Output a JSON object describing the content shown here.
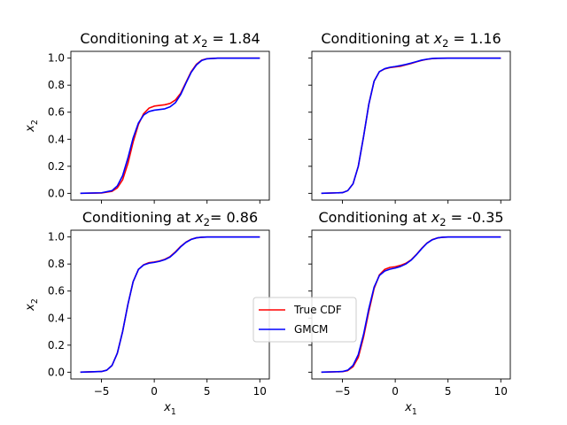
{
  "chart_data": [
    {
      "type": "line",
      "title": {
        "prefix": "Conditioning at ",
        "var": "x",
        "sub": "2",
        "suffix": " = 1.84"
      },
      "xlabel": {
        "var": "",
        "sub": ""
      },
      "ylabel": {
        "var": "x",
        "sub": "2"
      },
      "xlim": [
        -7.9,
        10.9
      ],
      "ylim": [
        -0.05,
        1.05
      ],
      "xticks": [
        -5,
        0,
        5,
        10
      ],
      "yticks": [
        0.0,
        0.2,
        0.4,
        0.6,
        0.8,
        1.0
      ],
      "xtick_labels": [
        "",
        "",
        "",
        ""
      ],
      "ytick_labels": [
        "0.0",
        "0.2",
        "0.4",
        "0.6",
        "0.8",
        "1.0"
      ],
      "series": [
        {
          "name": "True CDF",
          "color": "#ff0000",
          "x": [
            -7,
            -5,
            -4,
            -3.5,
            -3,
            -2.5,
            -2,
            -1.5,
            -1,
            -0.5,
            0,
            0.5,
            1,
            1.5,
            2,
            2.5,
            3,
            3.5,
            4,
            4.5,
            5,
            6,
            7,
            8,
            10
          ],
          "y": [
            0.0,
            0.003,
            0.015,
            0.04,
            0.1,
            0.22,
            0.38,
            0.51,
            0.59,
            0.63,
            0.645,
            0.65,
            0.655,
            0.665,
            0.69,
            0.74,
            0.82,
            0.9,
            0.955,
            0.985,
            0.996,
            1.0,
            1.0,
            1.0,
            1.0
          ]
        },
        {
          "name": "GMCM",
          "color": "#0000ff",
          "x": [
            -7,
            -5,
            -4,
            -3.5,
            -3,
            -2.5,
            -2,
            -1.5,
            -1,
            -0.5,
            0,
            0.5,
            1,
            1.5,
            2,
            2.5,
            3,
            3.5,
            4,
            4.5,
            5,
            6,
            7,
            8,
            10
          ],
          "y": [
            0.0,
            0.004,
            0.02,
            0.055,
            0.13,
            0.26,
            0.41,
            0.52,
            0.58,
            0.605,
            0.615,
            0.62,
            0.625,
            0.64,
            0.67,
            0.73,
            0.815,
            0.895,
            0.95,
            0.983,
            0.995,
            1.0,
            1.0,
            1.0,
            1.0
          ]
        }
      ]
    },
    {
      "type": "line",
      "title": {
        "prefix": "Conditioning at ",
        "var": "x",
        "sub": "2",
        "suffix": " =  1.16"
      },
      "xlabel": {
        "var": "",
        "sub": ""
      },
      "ylabel": {
        "var": "",
        "sub": ""
      },
      "xlim": [
        -7.9,
        10.9
      ],
      "ylim": [
        -0.05,
        1.05
      ],
      "xticks": [
        -5,
        0,
        5,
        10
      ],
      "yticks": [
        0.0,
        0.2,
        0.4,
        0.6,
        0.8,
        1.0
      ],
      "xtick_labels": [
        "",
        "",
        "",
        ""
      ],
      "ytick_labels": [
        "",
        "",
        "",
        "",
        "",
        ""
      ],
      "series": [
        {
          "name": "True CDF",
          "color": "#ff0000",
          "x": [
            -7,
            -5,
            -4.5,
            -4,
            -3.5,
            -3,
            -2.5,
            -2,
            -1.5,
            -1,
            -0.5,
            0,
            0.5,
            1,
            1.5,
            2,
            2.5,
            3,
            3.5,
            4,
            5,
            6,
            8,
            10
          ],
          "y": [
            0.0,
            0.005,
            0.02,
            0.07,
            0.2,
            0.42,
            0.66,
            0.83,
            0.9,
            0.92,
            0.93,
            0.935,
            0.94,
            0.95,
            0.96,
            0.972,
            0.983,
            0.991,
            0.996,
            0.999,
            1.0,
            1.0,
            1.0,
            1.0
          ]
        },
        {
          "name": "GMCM",
          "color": "#0000ff",
          "x": [
            -7,
            -5,
            -4.5,
            -4,
            -3.5,
            -3,
            -2.5,
            -2,
            -1.5,
            -1,
            -0.5,
            0,
            0.5,
            1,
            1.5,
            2,
            2.5,
            3,
            3.5,
            4,
            5,
            6,
            8,
            10
          ],
          "y": [
            0.0,
            0.005,
            0.02,
            0.07,
            0.2,
            0.42,
            0.66,
            0.83,
            0.9,
            0.922,
            0.932,
            0.938,
            0.945,
            0.953,
            0.963,
            0.974,
            0.985,
            0.992,
            0.997,
            0.999,
            1.0,
            1.0,
            1.0,
            1.0
          ]
        }
      ]
    },
    {
      "type": "line",
      "title": {
        "prefix": "Conditioning at ",
        "var": "x",
        "sub": "2",
        "suffix": "= 0.86"
      },
      "xlabel": {
        "var": "x",
        "sub": "1"
      },
      "ylabel": {
        "var": "x",
        "sub": "2"
      },
      "xlim": [
        -7.9,
        10.9
      ],
      "ylim": [
        -0.05,
        1.05
      ],
      "xticks": [
        -5,
        0,
        5,
        10
      ],
      "yticks": [
        0.0,
        0.2,
        0.4,
        0.6,
        0.8,
        1.0
      ],
      "xtick_labels": [
        "−5",
        "0",
        "5",
        "10"
      ],
      "ytick_labels": [
        "0.0",
        "0.2",
        "0.4",
        "0.6",
        "0.8",
        "1.0"
      ],
      "series": [
        {
          "name": "True CDF",
          "color": "#ff0000",
          "x": [
            -7,
            -5,
            -4.5,
            -4,
            -3.5,
            -3,
            -2.5,
            -2,
            -1.5,
            -1,
            -0.5,
            0,
            0.5,
            1,
            1.5,
            2,
            2.5,
            3,
            3.5,
            4,
            4.5,
            5,
            6,
            8,
            10
          ],
          "y": [
            0.0,
            0.005,
            0.015,
            0.05,
            0.14,
            0.3,
            0.5,
            0.67,
            0.76,
            0.795,
            0.81,
            0.815,
            0.822,
            0.835,
            0.855,
            0.89,
            0.93,
            0.962,
            0.983,
            0.994,
            0.998,
            1.0,
            1.0,
            1.0,
            1.0
          ]
        },
        {
          "name": "GMCM",
          "color": "#0000ff",
          "x": [
            -7,
            -5,
            -4.5,
            -4,
            -3.5,
            -3,
            -2.5,
            -2,
            -1.5,
            -1,
            -0.5,
            0,
            0.5,
            1,
            1.5,
            2,
            2.5,
            3,
            3.5,
            4,
            4.5,
            5,
            6,
            8,
            10
          ],
          "y": [
            0.0,
            0.005,
            0.015,
            0.05,
            0.14,
            0.3,
            0.5,
            0.67,
            0.76,
            0.793,
            0.806,
            0.812,
            0.82,
            0.832,
            0.852,
            0.886,
            0.927,
            0.96,
            0.982,
            0.994,
            0.998,
            1.0,
            1.0,
            1.0,
            1.0
          ]
        }
      ]
    },
    {
      "type": "line",
      "title": {
        "prefix": "Conditioning at ",
        "var": "x",
        "sub": "2",
        "suffix": " = -0.35"
      },
      "xlabel": {
        "var": "x",
        "sub": "1"
      },
      "ylabel": {
        "var": "",
        "sub": ""
      },
      "xlim": [
        -7.9,
        10.9
      ],
      "ylim": [
        -0.05,
        1.05
      ],
      "xticks": [
        -5,
        0,
        5,
        10
      ],
      "yticks": [
        0.0,
        0.2,
        0.4,
        0.6,
        0.8,
        1.0
      ],
      "xtick_labels": [
        "−5",
        "0",
        "5",
        "10"
      ],
      "ytick_labels": [
        "",
        "",
        "",
        "",
        "",
        ""
      ],
      "series": [
        {
          "name": "True CDF",
          "color": "#ff0000",
          "x": [
            -7,
            -5,
            -4.5,
            -4,
            -3.5,
            -3,
            -2.5,
            -2,
            -1.5,
            -1,
            -0.5,
            0,
            0.5,
            1,
            1.5,
            2,
            2.5,
            3,
            3.5,
            4,
            4.5,
            5,
            6,
            8,
            10
          ],
          "y": [
            0.0,
            0.004,
            0.012,
            0.04,
            0.11,
            0.26,
            0.45,
            0.62,
            0.72,
            0.76,
            0.775,
            0.78,
            0.79,
            0.805,
            0.83,
            0.87,
            0.915,
            0.955,
            0.98,
            0.993,
            0.998,
            1.0,
            1.0,
            1.0,
            1.0
          ]
        },
        {
          "name": "GMCM",
          "color": "#0000ff",
          "x": [
            -7,
            -5,
            -4.5,
            -4,
            -3.5,
            -3,
            -2.5,
            -2,
            -1.5,
            -1,
            -0.5,
            0,
            0.5,
            1,
            1.5,
            2,
            2.5,
            3,
            3.5,
            4,
            4.5,
            5,
            6,
            8,
            10
          ],
          "y": [
            0.0,
            0.005,
            0.015,
            0.05,
            0.13,
            0.28,
            0.47,
            0.63,
            0.715,
            0.748,
            0.762,
            0.77,
            0.782,
            0.8,
            0.828,
            0.868,
            0.913,
            0.953,
            0.979,
            0.993,
            0.998,
            1.0,
            1.0,
            1.0,
            1.0
          ]
        }
      ]
    }
  ],
  "legend": {
    "placement": "center",
    "entries": [
      {
        "label": "True CDF",
        "color": "#ff0000"
      },
      {
        "label": "GMCM",
        "color": "#0000ff"
      }
    ]
  }
}
